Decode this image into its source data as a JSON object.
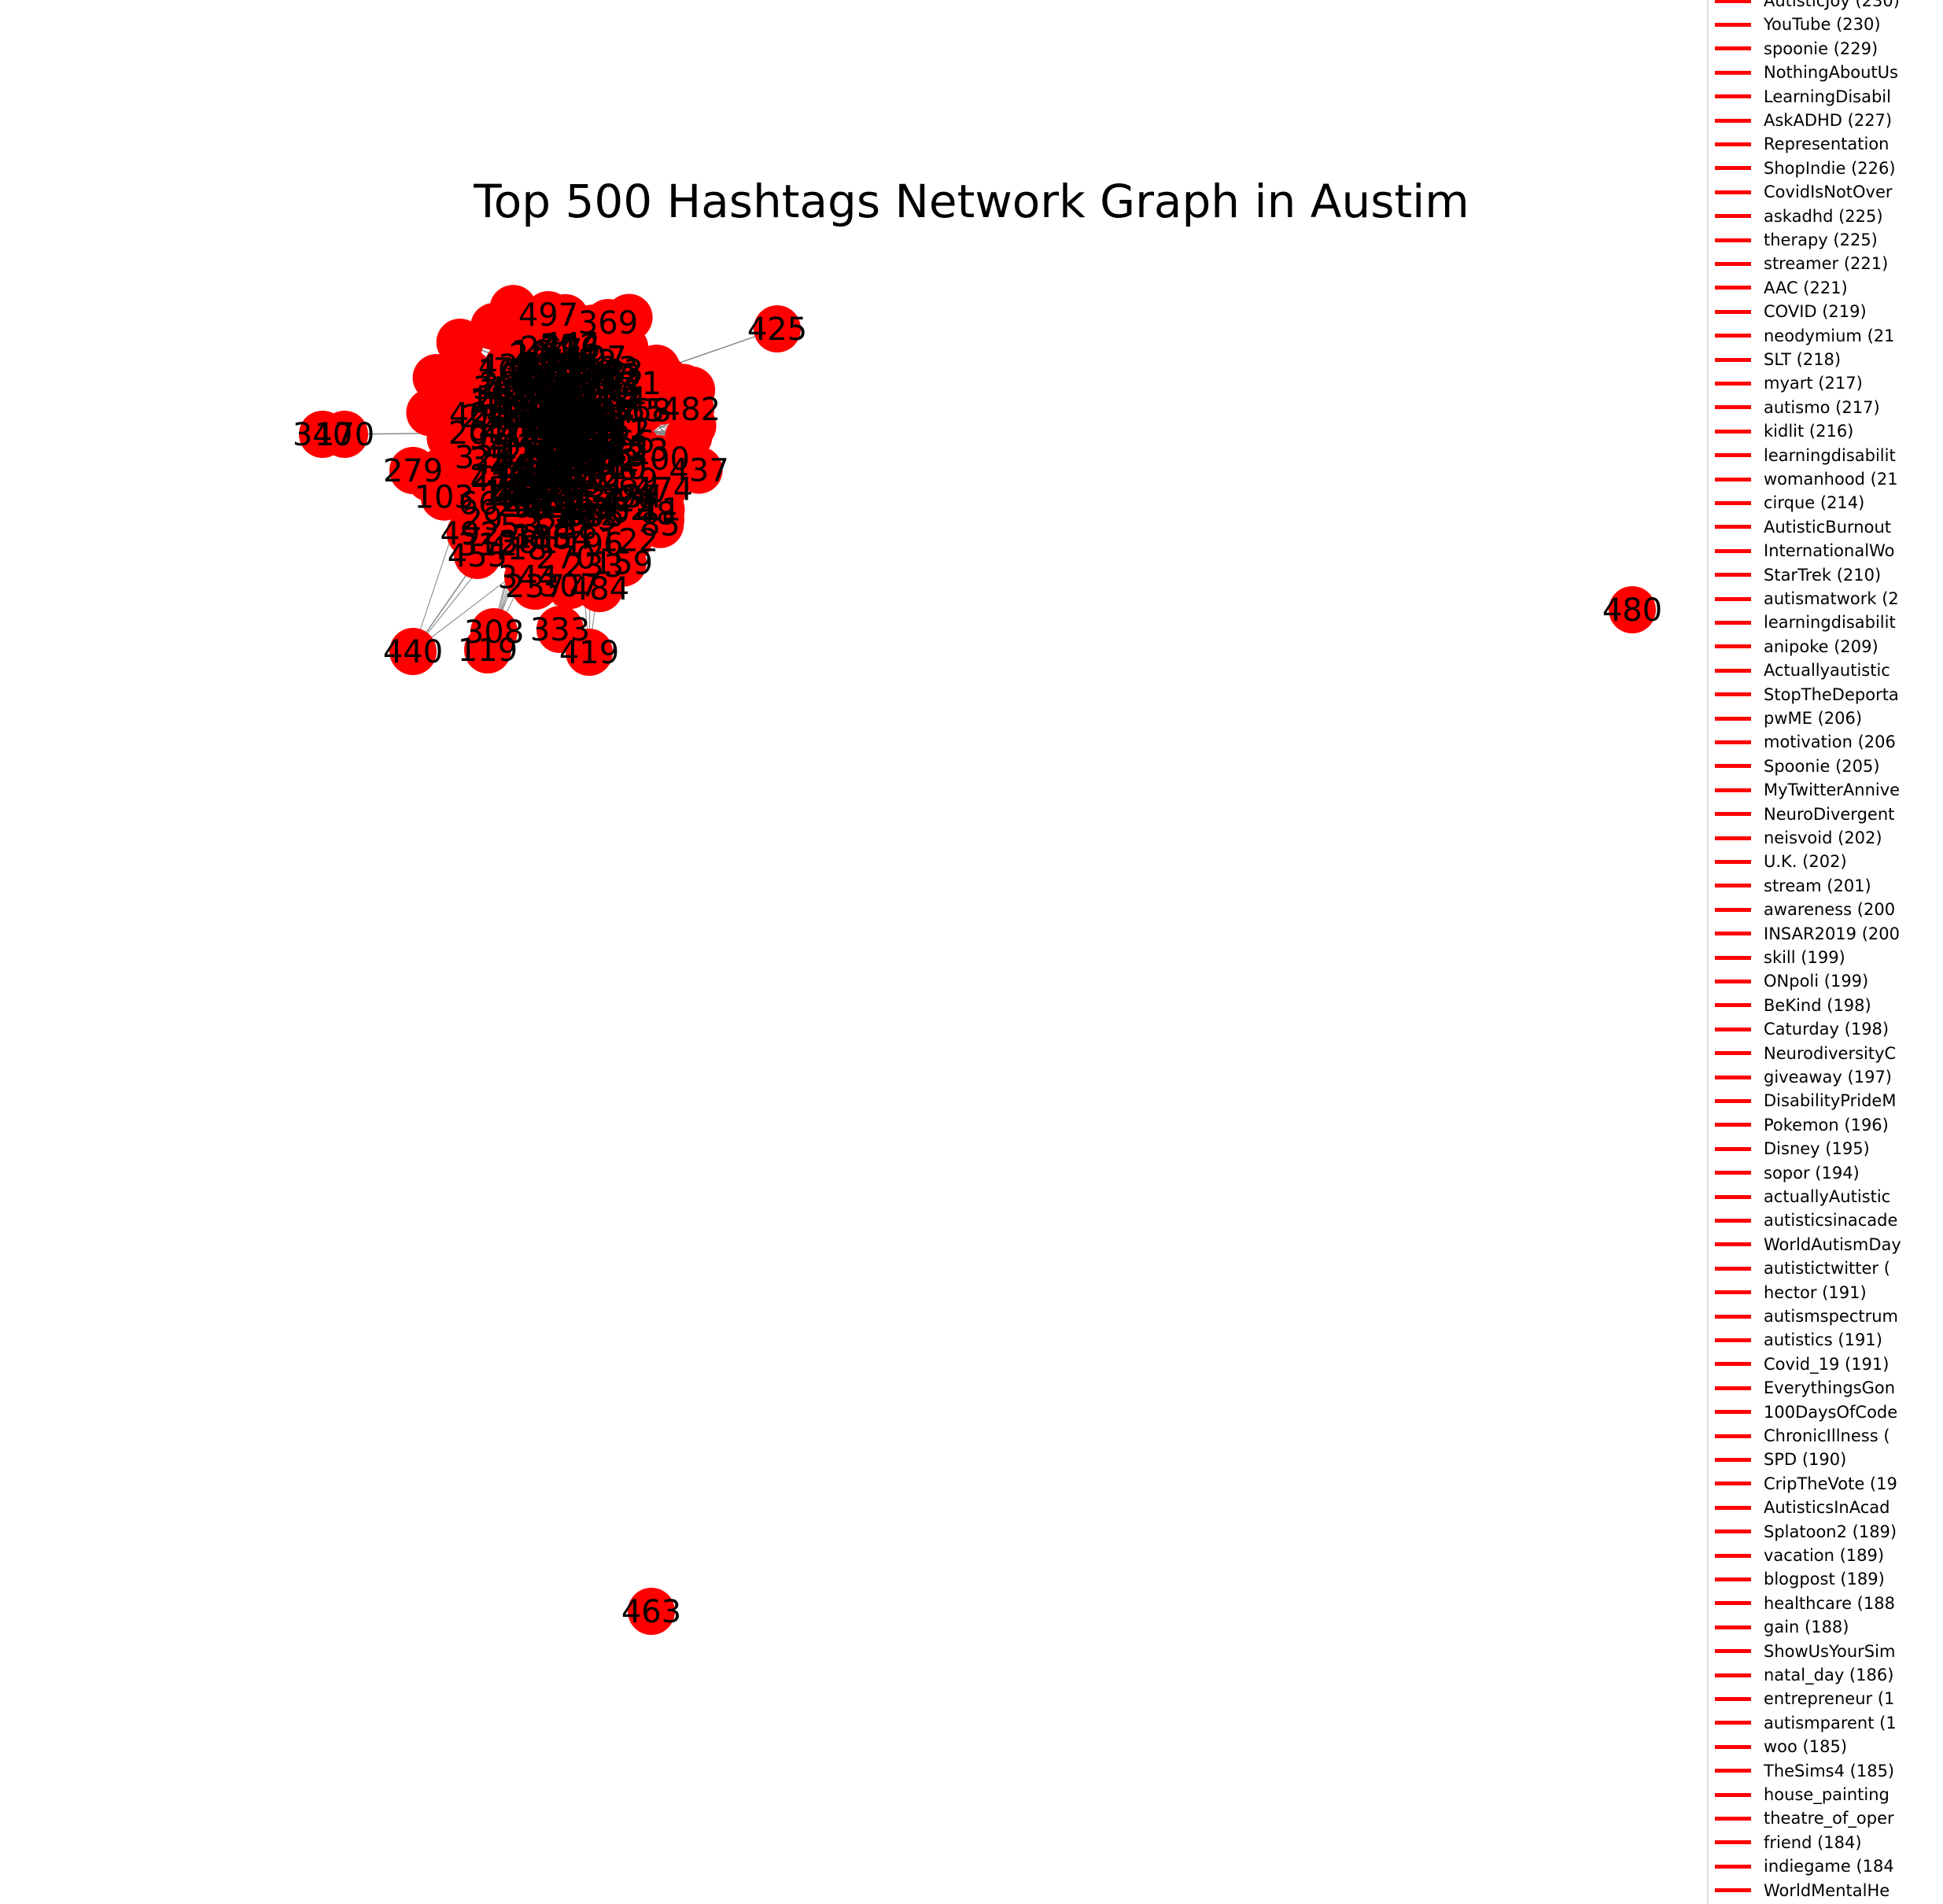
{
  "title": "Top 500 Hashtags Network Graph in Austim",
  "colors": {
    "node": "#ff0000",
    "edge": "#808080",
    "label": "#000000",
    "legend_line": "#ff0000"
  },
  "network": {
    "named_nodes": [
      "497",
      "369",
      "425",
      "482",
      "340",
      "170",
      "279",
      "440",
      "308",
      "119",
      "333",
      "419",
      "237",
      "484",
      "312",
      "480",
      "463",
      "201",
      "23"
    ],
    "edges": [
      [
        "425",
        "201"
      ],
      [
        "340",
        "170"
      ],
      [
        "170",
        "201"
      ],
      [
        "440",
        "312"
      ],
      [
        "308",
        "119"
      ],
      [
        "237",
        "484"
      ],
      [
        "333",
        "419"
      ]
    ]
  },
  "legend": {
    "items": [
      "AutisticJoy (230)",
      "YouTube (230)",
      "spoonie (229)",
      "NothingAboutUs",
      "LearningDisabil",
      "AskADHD (227)",
      "Representation",
      "ShopIndie (226)",
      "CovidIsNotOver",
      "askadhd (225)",
      "therapy (225)",
      "streamer (221)",
      "AAC (221)",
      "COVID (219)",
      "neodymium (21",
      "SLT (218)",
      "myart (217)",
      "autismo (217)",
      "kidlit (216)",
      "learningdisabilit",
      "womanhood (21",
      "cirque (214)",
      "AutisticBurnout",
      "InternationalWo",
      "StarTrek (210)",
      "autismatwork (2",
      "learningdisabilit",
      "anipoke (209)",
      "Actuallyautistic",
      "StopTheDeporta",
      "pwME (206)",
      "motivation (206",
      "Spoonie (205)",
      "MyTwitterAnnive",
      "NeuroDivergent",
      "neisvoid (202)",
      "U.K. (202)",
      "stream (201)",
      "awareness (200",
      "INSAR2019 (200",
      "skill (199)",
      "ONpoli (199)",
      "BeKind (198)",
      "Caturday (198)",
      "NeurodiversityC",
      "giveaway (197)",
      "DisabilityPrideM",
      "Pokemon (196)",
      "Disney (195)",
      "sopor (194)",
      "actuallyAutistic",
      "autisticsinacade",
      "WorldAutismDay",
      "autistictwitter (",
      "hector (191)",
      "autismspectrum",
      "autistics (191)",
      "Covid_19 (191)",
      "EverythingsGon",
      "100DaysOfCode",
      "ChronicIllness (",
      "SPD (190)",
      "CripTheVote (19",
      "AutisticsInAcad",
      "Splatoon2 (189)",
      "vacation (189)",
      "blogpost (189)",
      "healthcare (188",
      "gain (188)",
      "ShowUsYourSim",
      "natal_day (186)",
      "entrepreneur (1",
      "autismparent (1",
      "woo (185)",
      "TheSims4 (185)",
      "house_painting",
      "theatre_of_oper",
      "friend (184)",
      "indiegame (184",
      "WorldMentalHe"
    ]
  }
}
